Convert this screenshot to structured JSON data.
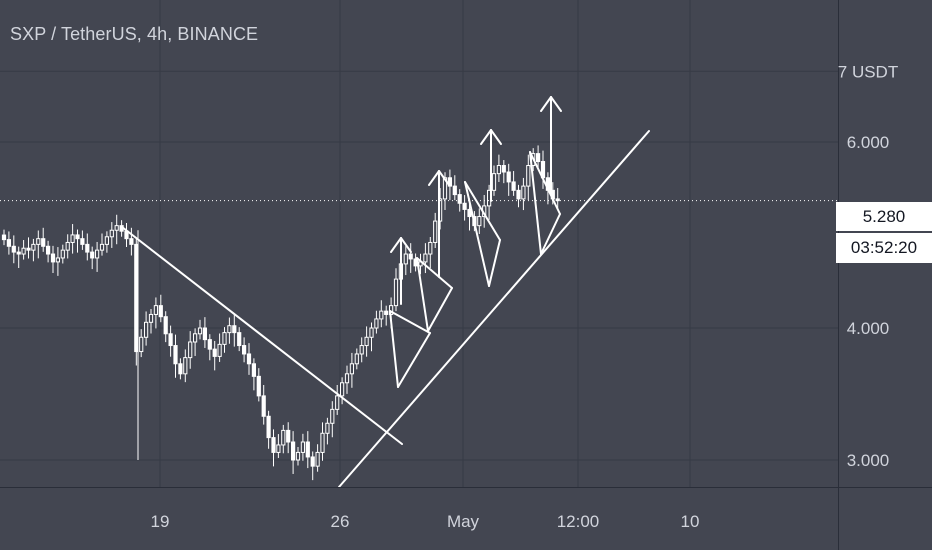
{
  "header": {
    "title": "SXP / TetherUS, 4h, BINANCE"
  },
  "price_axis": {
    "top_label": "7 USDT",
    "ticks": [
      "6.000",
      "4.000",
      "3.000"
    ]
  },
  "time_axis": {
    "ticks": [
      "19",
      "26",
      "May",
      "12:00",
      "10"
    ]
  },
  "last_price": {
    "value": "5.280",
    "countdown": "03:52:20"
  },
  "colors": {
    "background": "#434651",
    "grid": "#363a45",
    "axis_text": "#d1d4dc",
    "candle": "#ffffff",
    "drawing": "#ffffff"
  },
  "chart_data": {
    "type": "candlestick",
    "title": "SXP / TetherUS, 4h, BINANCE",
    "y_unit": "USDT",
    "y_ticks": [
      3.0,
      4.0,
      6.0,
      7.0
    ],
    "y_scale": "log",
    "ylim": [
      2.75,
      7.4
    ],
    "x_ticks": [
      "19",
      "26",
      "May",
      "12:00",
      "10"
    ],
    "last_price": 5.28,
    "countdown": "03:52:20",
    "annotations": [
      {
        "type": "trend-line",
        "label": "descending resistance",
        "from": 5.08,
        "to": 3.1
      },
      {
        "type": "trend-line",
        "label": "ascending support",
        "from": 2.75,
        "to": 6.05
      },
      {
        "type": "arrow-up",
        "count": 4
      },
      {
        "type": "flag-pattern",
        "count": 4
      }
    ],
    "close_series": [
      4.85,
      4.78,
      4.72,
      4.7,
      4.76,
      4.74,
      4.8,
      4.86,
      4.78,
      4.7,
      4.62,
      4.66,
      4.74,
      4.82,
      4.9,
      4.86,
      4.8,
      4.72,
      4.66,
      4.74,
      4.8,
      4.88,
      4.95,
      5.0,
      4.94,
      4.86,
      4.8,
      3.8,
      3.92,
      4.05,
      4.12,
      4.2,
      4.1,
      3.95,
      3.85,
      3.7,
      3.62,
      3.75,
      3.88,
      3.95,
      4.0,
      3.9,
      3.82,
      3.76,
      3.86,
      3.96,
      4.02,
      3.96,
      3.85,
      3.78,
      3.7,
      3.6,
      3.45,
      3.3,
      3.15,
      3.05,
      3.1,
      3.2,
      3.12,
      3.0,
      3.05,
      3.12,
      3.02,
      2.96,
      3.05,
      3.18,
      3.25,
      3.35,
      3.45,
      3.55,
      3.62,
      3.7,
      3.78,
      3.85,
      3.92,
      4.0,
      4.08,
      4.15,
      4.12,
      4.2,
      4.45,
      4.6,
      4.7,
      4.65,
      4.58,
      4.62,
      4.7,
      4.82,
      5.05,
      5.3,
      5.55,
      5.45,
      5.35,
      5.25,
      5.18,
      5.1,
      5.0,
      5.1,
      5.22,
      5.4,
      5.6,
      5.7,
      5.62,
      5.5,
      5.4,
      5.3,
      5.45,
      5.7,
      5.85,
      5.75,
      5.55,
      5.4,
      5.3,
      5.28
    ]
  }
}
